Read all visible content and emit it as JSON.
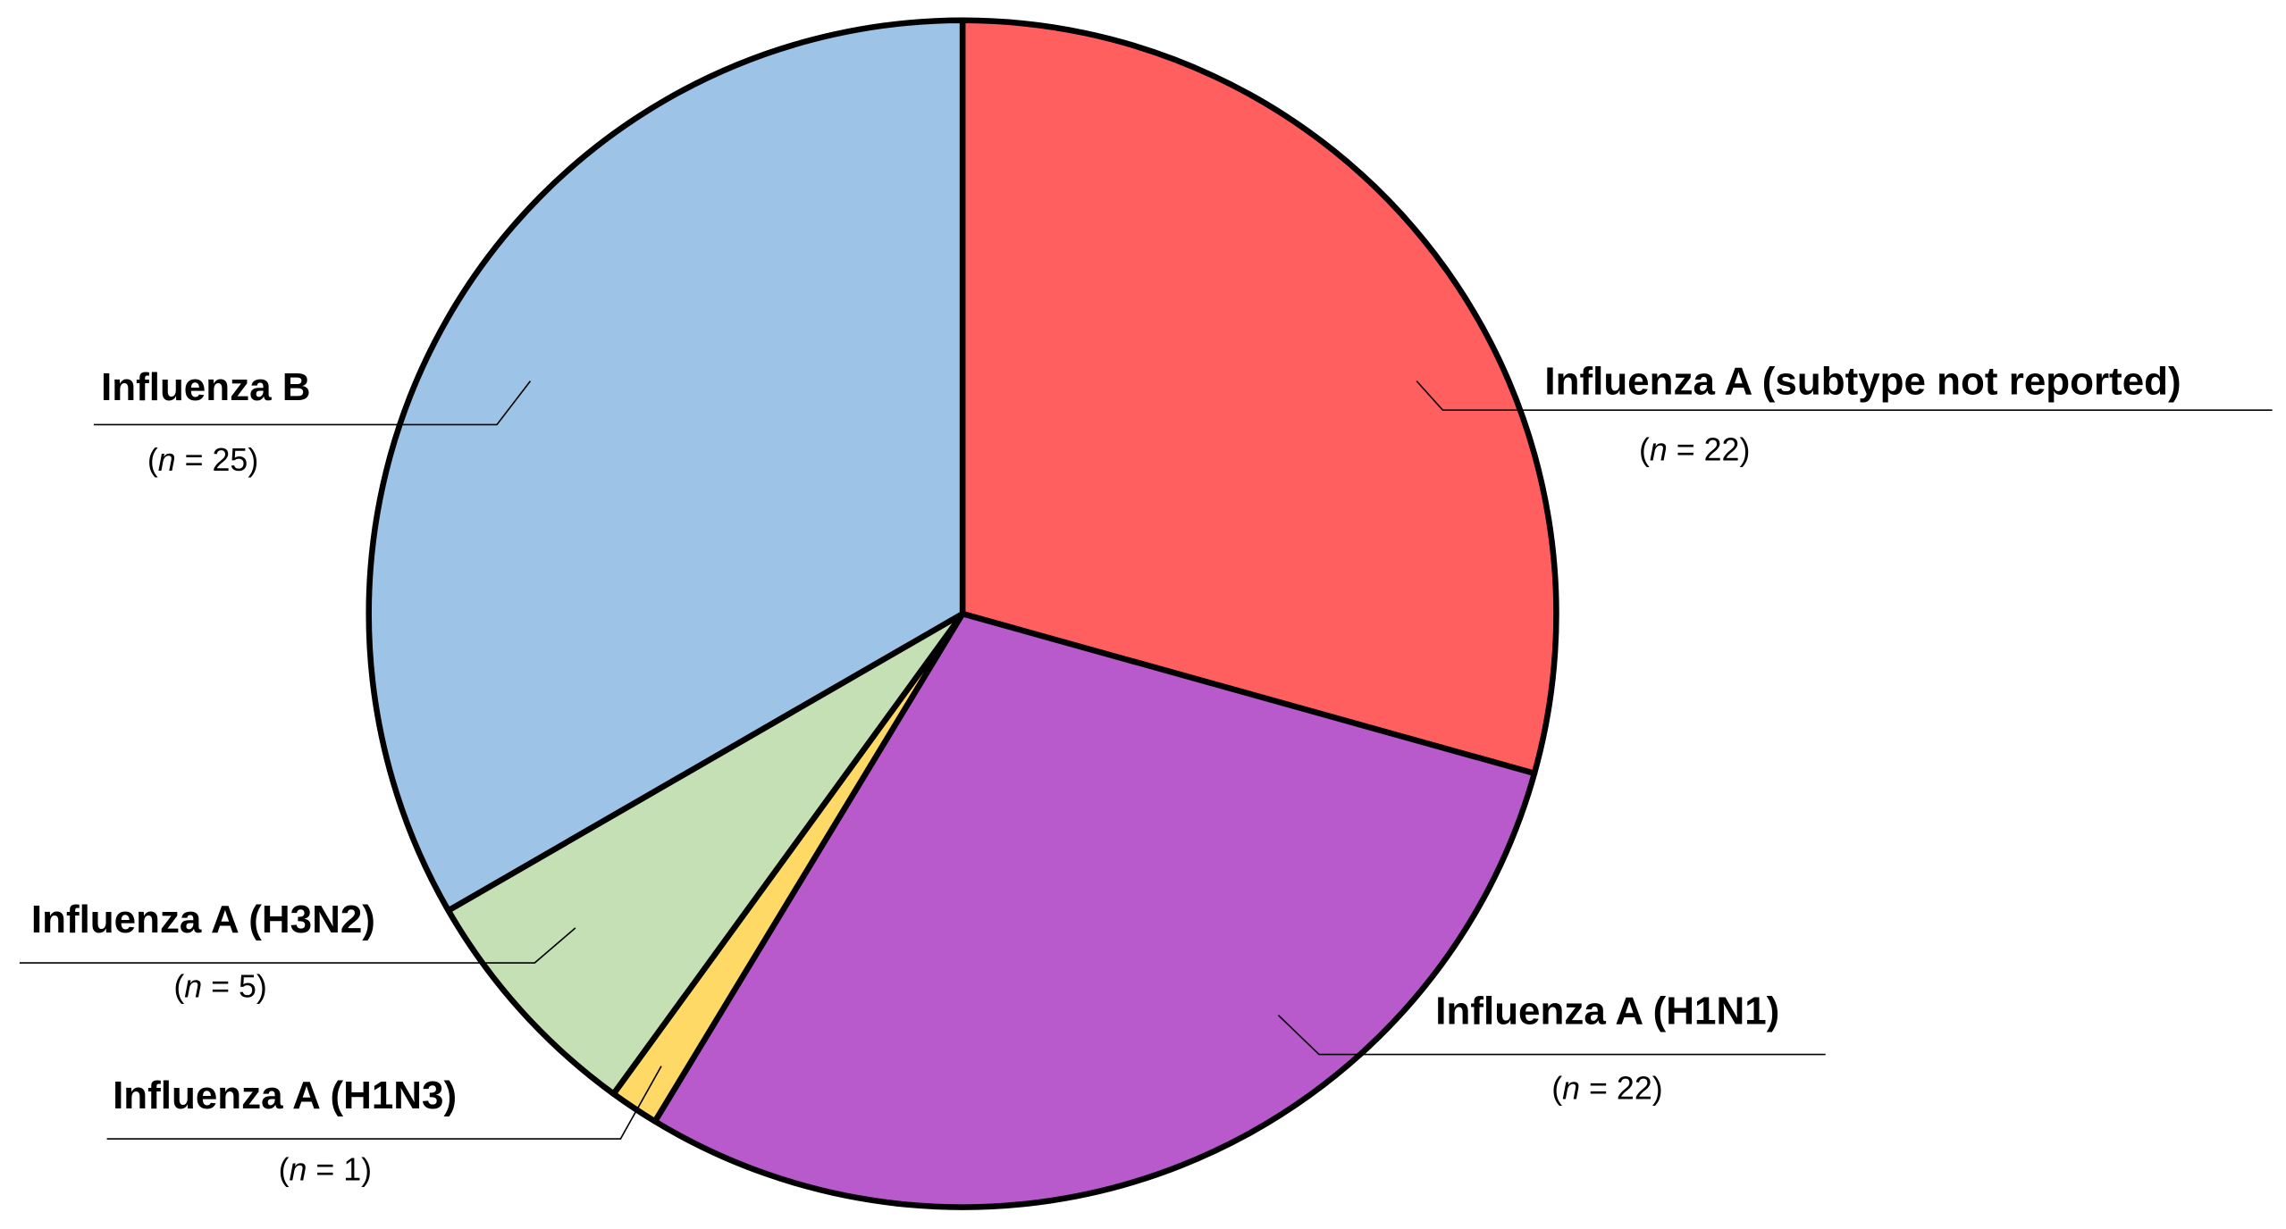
{
  "chart_data": {
    "type": "pie",
    "categories": [
      "Influenza A (subtype not reported)",
      "Influenza A (H1N1)",
      "Influenza A (H1N3)",
      "Influenza A (H3N2)",
      "Influenza B"
    ],
    "values": [
      22,
      22,
      1,
      5,
      25
    ],
    "value_labels": [
      "(n = 22)",
      "(n = 22)",
      "(n = 1)",
      "(n = 5)",
      "(n = 25)"
    ],
    "colors": [
      "#ff5f5f",
      "#b859cc",
      "#ffd966",
      "#c5e0b4",
      "#9dc3e6"
    ]
  }
}
